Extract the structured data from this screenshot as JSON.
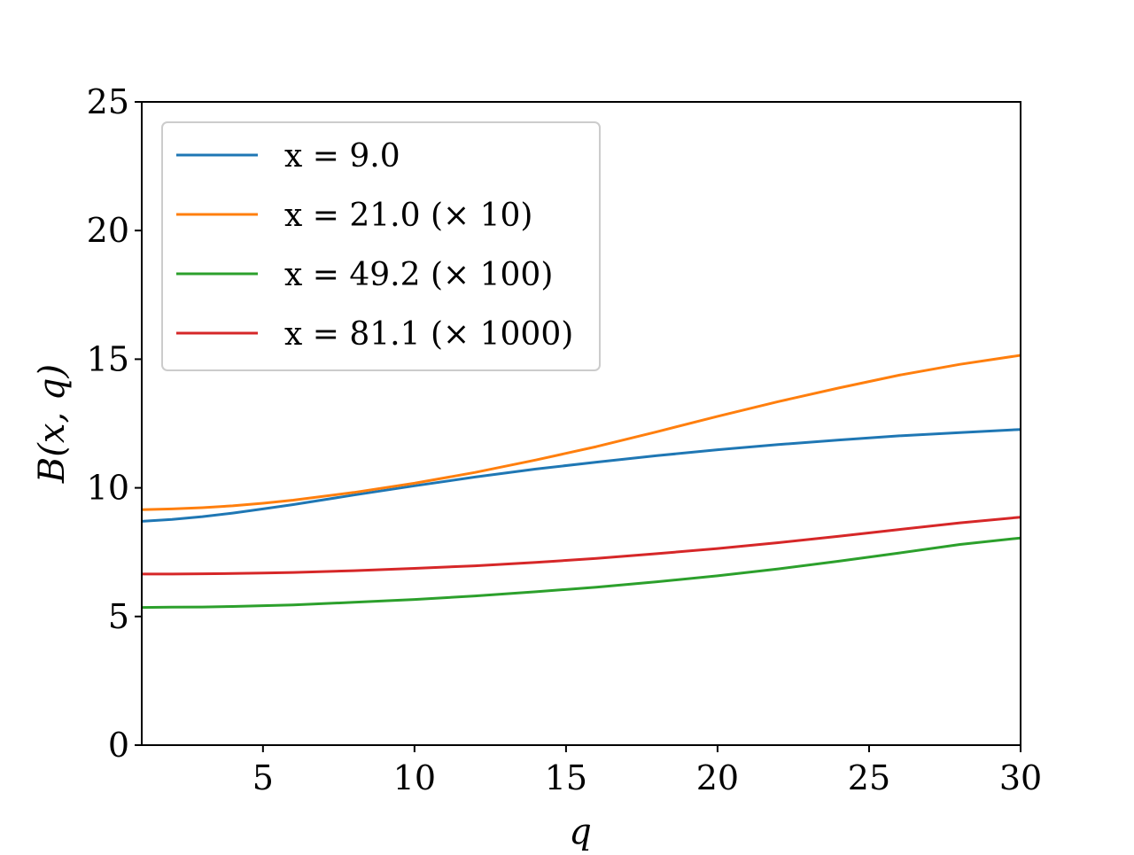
{
  "chart_data": {
    "type": "line",
    "title": "",
    "xlabel": "q",
    "ylabel": "B(x, q)",
    "xlim": [
      1,
      30
    ],
    "ylim": [
      0,
      25
    ],
    "xticks": [
      5,
      10,
      15,
      20,
      25,
      30
    ],
    "yticks": [
      0,
      5,
      10,
      15,
      20,
      25
    ],
    "x_tick_labels": [
      "5",
      "10",
      "15",
      "20",
      "25",
      "30"
    ],
    "y_tick_labels": [
      "0",
      "5",
      "10",
      "15",
      "20",
      "25"
    ],
    "grid": false,
    "legend_position": "top-left",
    "x": [
      1,
      2,
      3,
      4,
      5,
      6,
      8,
      10,
      12,
      14,
      16,
      18,
      20,
      22,
      24,
      26,
      28,
      30
    ],
    "series": [
      {
        "name": "x = 9.0",
        "color": "#1f77b4",
        "values": [
          8.7,
          8.77,
          8.88,
          9.02,
          9.18,
          9.35,
          9.72,
          10.08,
          10.42,
          10.73,
          11.0,
          11.25,
          11.48,
          11.68,
          11.86,
          12.02,
          12.15,
          12.27
        ]
      },
      {
        "name": "x = 21.0 (× 10)",
        "color": "#ff7f0e",
        "values": [
          9.15,
          9.18,
          9.23,
          9.3,
          9.4,
          9.52,
          9.82,
          10.18,
          10.6,
          11.08,
          11.6,
          12.18,
          12.78,
          13.35,
          13.88,
          14.38,
          14.8,
          15.15
        ]
      },
      {
        "name": "x = 49.2 (× 100)",
        "color": "#2ca02c",
        "values": [
          5.35,
          5.36,
          5.37,
          5.39,
          5.42,
          5.45,
          5.55,
          5.66,
          5.8,
          5.96,
          6.14,
          6.35,
          6.58,
          6.85,
          7.15,
          7.47,
          7.8,
          8.05
        ]
      },
      {
        "name": "x = 81.1 (× 1000)",
        "color": "#d62728",
        "values": [
          6.65,
          6.65,
          6.66,
          6.67,
          6.69,
          6.71,
          6.78,
          6.87,
          6.97,
          7.1,
          7.26,
          7.44,
          7.64,
          7.87,
          8.12,
          8.38,
          8.64,
          8.86
        ]
      }
    ]
  }
}
